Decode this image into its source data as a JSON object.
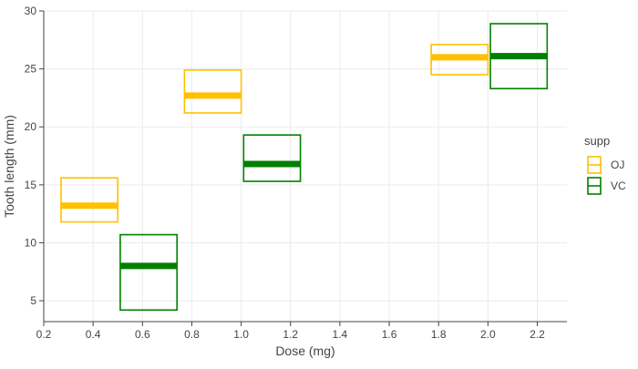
{
  "chart_data": {
    "type": "crossbar",
    "xlabel": "Dose (mg)",
    "ylabel": "Tooth length (mm)",
    "xlim": [
      0.2,
      2.32
    ],
    "ylim": [
      3.2,
      30
    ],
    "x_ticks": [
      0.2,
      0.4,
      0.6,
      0.8,
      1.0,
      1.2,
      1.4,
      1.6,
      1.8,
      2.0,
      2.2
    ],
    "x_tick_labels": [
      "0.2",
      "0.4",
      "0.6",
      "0.8",
      "1.0",
      "1.2",
      "1.4",
      "1.6",
      "1.8",
      "2.0",
      "2.2"
    ],
    "y_ticks": [
      5,
      10,
      15,
      20,
      25,
      30
    ],
    "y_tick_labels": [
      "5",
      "10",
      "15",
      "20",
      "25",
      "30"
    ],
    "grid": true,
    "legend": {
      "title": "supp",
      "position": "right",
      "entries": [
        "OJ",
        "VC"
      ]
    },
    "series": [
      {
        "name": "OJ",
        "color": "#FFC000",
        "points": [
          {
            "x": 0.5,
            "ymin": 11.8,
            "y": 13.2,
            "ymax": 15.6,
            "xmin": 0.27,
            "xmax": 0.5
          },
          {
            "x": 1.0,
            "ymin": 21.2,
            "y": 22.7,
            "ymax": 24.9,
            "xmin": 0.77,
            "xmax": 1.0
          },
          {
            "x": 2.0,
            "ymin": 24.5,
            "y": 26.0,
            "ymax": 27.1,
            "xmin": 1.77,
            "xmax": 2.0
          }
        ]
      },
      {
        "name": "VC",
        "color": "#008000",
        "points": [
          {
            "x": 0.5,
            "ymin": 4.2,
            "y": 8.0,
            "ymax": 10.7,
            "xmin": 0.51,
            "xmax": 0.74
          },
          {
            "x": 1.0,
            "ymin": 15.3,
            "y": 16.8,
            "ymax": 19.3,
            "xmin": 1.01,
            "xmax": 1.24
          },
          {
            "x": 2.0,
            "ymin": 23.3,
            "y": 26.1,
            "ymax": 28.9,
            "xmin": 2.01,
            "xmax": 2.24
          }
        ]
      }
    ]
  }
}
